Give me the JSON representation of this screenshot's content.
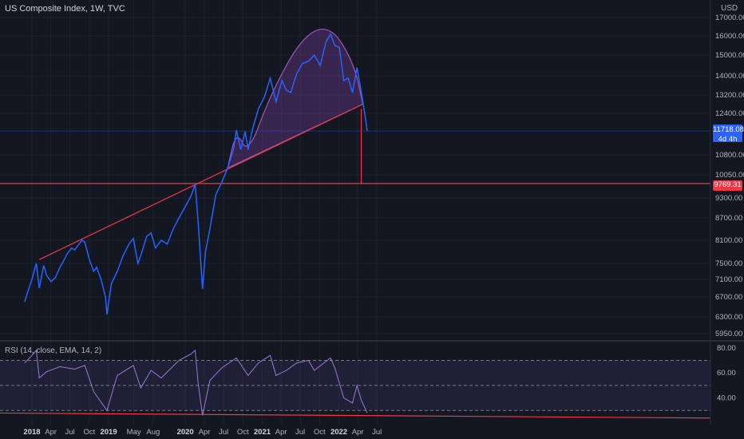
{
  "header": {
    "title": "US Composite Index, 1W, TVC",
    "currency": "USD"
  },
  "rsi_header": "RSI (14, close, EMA, 14, 2)",
  "price_badges": {
    "last_price": "11718.08",
    "countdown": "4d 4h",
    "target_price": "9769.31"
  },
  "colors": {
    "background": "#131722",
    "price_line": "#2962ff",
    "trend_line": "#f23645",
    "cup_fill": "#7b3fa0",
    "rsi_line": "#9c7bd4"
  },
  "chart_data": [
    {
      "type": "line",
      "title": "US Composite Index, 1W, TVC",
      "ylabel": "USD",
      "y_ticks": [
        5950,
        6300,
        6700,
        7100,
        7500,
        8100,
        8700,
        9300,
        10050,
        10800,
        12400,
        13200,
        14000,
        15000,
        16000,
        17000
      ],
      "x_ticks": [
        {
          "label": "2018",
          "year": true
        },
        {
          "label": "Apr",
          "year": false
        },
        {
          "label": "Jul",
          "year": false
        },
        {
          "label": "Oct",
          "year": false
        },
        {
          "label": "2019",
          "year": true
        },
        {
          "label": "May",
          "year": false
        },
        {
          "label": "Aug",
          "year": false
        },
        {
          "label": "2020",
          "year": true
        },
        {
          "label": "Apr",
          "year": false
        },
        {
          "label": "Jul",
          "year": false
        },
        {
          "label": "Oct",
          "year": false
        },
        {
          "label": "2021",
          "year": true
        },
        {
          "label": "Apr",
          "year": false
        },
        {
          "label": "Jul",
          "year": false
        },
        {
          "label": "Oct",
          "year": false
        },
        {
          "label": "2022",
          "year": true
        },
        {
          "label": "Apr",
          "year": false
        },
        {
          "label": "Jul",
          "year": false
        }
      ],
      "x": [
        "2017-11-27",
        "2017-12-11",
        "2018-01-01",
        "2018-01-22",
        "2018-02-05",
        "2018-02-26",
        "2018-03-12",
        "2018-04-02",
        "2018-04-23",
        "2018-05-14",
        "2018-06-04",
        "2018-06-18",
        "2018-07-09",
        "2018-07-23",
        "2018-08-13",
        "2018-08-27",
        "2018-09-10",
        "2018-10-01",
        "2018-10-22",
        "2018-11-05",
        "2018-11-26",
        "2018-12-17",
        "2018-12-24",
        "2019-01-14",
        "2019-02-11",
        "2019-03-11",
        "2019-04-08",
        "2019-04-29",
        "2019-05-20",
        "2019-06-03",
        "2019-07-01",
        "2019-07-22",
        "2019-08-12",
        "2019-09-09",
        "2019-10-07",
        "2019-11-04",
        "2019-12-02",
        "2020-01-06",
        "2020-01-27",
        "2020-02-17",
        "2020-03-02",
        "2020-03-16",
        "2020-03-23",
        "2020-04-06",
        "2020-04-27",
        "2020-05-25",
        "2020-06-22",
        "2020-07-20",
        "2020-08-17",
        "2020-08-31",
        "2020-09-21",
        "2020-10-12",
        "2020-10-26",
        "2020-11-16",
        "2020-12-14",
        "2021-01-11",
        "2021-02-08",
        "2021-03-08",
        "2021-04-05",
        "2021-04-26",
        "2021-05-17",
        "2021-06-14",
        "2021-07-12",
        "2021-08-09",
        "2021-09-06",
        "2021-10-04",
        "2021-11-01",
        "2021-11-22",
        "2021-12-13",
        "2022-01-03",
        "2022-01-24",
        "2022-02-14",
        "2022-03-07",
        "2022-03-28",
        "2022-04-18",
        "2022-05-02",
        "2022-05-16"
      ],
      "series": [
        {
          "values": [
            6600,
            6800,
            7100,
            7500,
            6900,
            7450,
            7200,
            7050,
            7150,
            7400,
            7600,
            7750,
            7900,
            7850,
            8000,
            8100,
            8050,
            7600,
            7300,
            7400,
            7100,
            6700,
            6350,
            7000,
            7300,
            7700,
            8000,
            8150,
            7500,
            7700,
            8200,
            8300,
            7900,
            8100,
            8000,
            8400,
            8700,
            9100,
            9350,
            9750,
            8600,
            7400,
            6880,
            7800,
            8400,
            9400,
            9800,
            10300,
            11000,
            11750,
            11000,
            11700,
            11000,
            11800,
            12600,
            13100,
            13900,
            12900,
            13800,
            13400,
            13300,
            14100,
            14600,
            14700,
            15000,
            14500,
            15700,
            16100,
            15500,
            15400,
            13800,
            13900,
            13300,
            14400,
            13300,
            12500,
            11718.08
          ]
        }
      ],
      "trendline": {
        "x": [
          "2018-02-05",
          "2022-04-25"
        ],
        "y": [
          7600,
          12800
        ]
      },
      "target_line": {
        "y": 9769.31
      },
      "rounding_top": {
        "x": [
          "2020-07-20",
          "2020-08-31",
          "2020-10-26",
          "2021-02-08",
          "2021-07-12",
          "2021-11-22",
          "2022-03-14",
          "2022-04-25"
        ],
        "y": [
          10300,
          11750,
          10800,
          13200,
          16000,
          16600,
          14600,
          12800
        ]
      }
    },
    {
      "type": "line",
      "title": "RSI (14, close, EMA, 14, 2)",
      "ylim": [
        20,
        85
      ],
      "y_ticks": [
        40,
        60,
        80
      ],
      "bands": [
        30,
        50,
        70
      ],
      "x": [
        "2017-11-27",
        "2018-01-01",
        "2018-01-22",
        "2018-02-05",
        "2018-03-12",
        "2018-05-14",
        "2018-07-23",
        "2018-09-10",
        "2018-10-22",
        "2018-12-24",
        "2019-02-11",
        "2019-04-29",
        "2019-06-03",
        "2019-07-22",
        "2019-09-09",
        "2019-12-02",
        "2020-01-27",
        "2020-02-17",
        "2020-03-02",
        "2020-03-23",
        "2020-04-27",
        "2020-06-22",
        "2020-08-31",
        "2020-10-26",
        "2020-12-14",
        "2021-02-08",
        "2021-03-08",
        "2021-04-26",
        "2021-06-14",
        "2021-08-09",
        "2021-09-06",
        "2021-11-22",
        "2021-12-13",
        "2022-01-24",
        "2022-03-07",
        "2022-03-28",
        "2022-04-18",
        "2022-05-16"
      ],
      "series": [
        {
          "values": [
            68,
            74,
            78,
            56,
            61,
            65,
            63,
            66,
            45,
            30,
            58,
            66,
            48,
            62,
            56,
            70,
            75,
            78,
            52,
            26,
            54,
            64,
            72,
            58,
            68,
            74,
            58,
            62,
            68,
            70,
            62,
            72,
            64,
            40,
            36,
            50,
            38,
            28
          ]
        }
      ]
    }
  ]
}
